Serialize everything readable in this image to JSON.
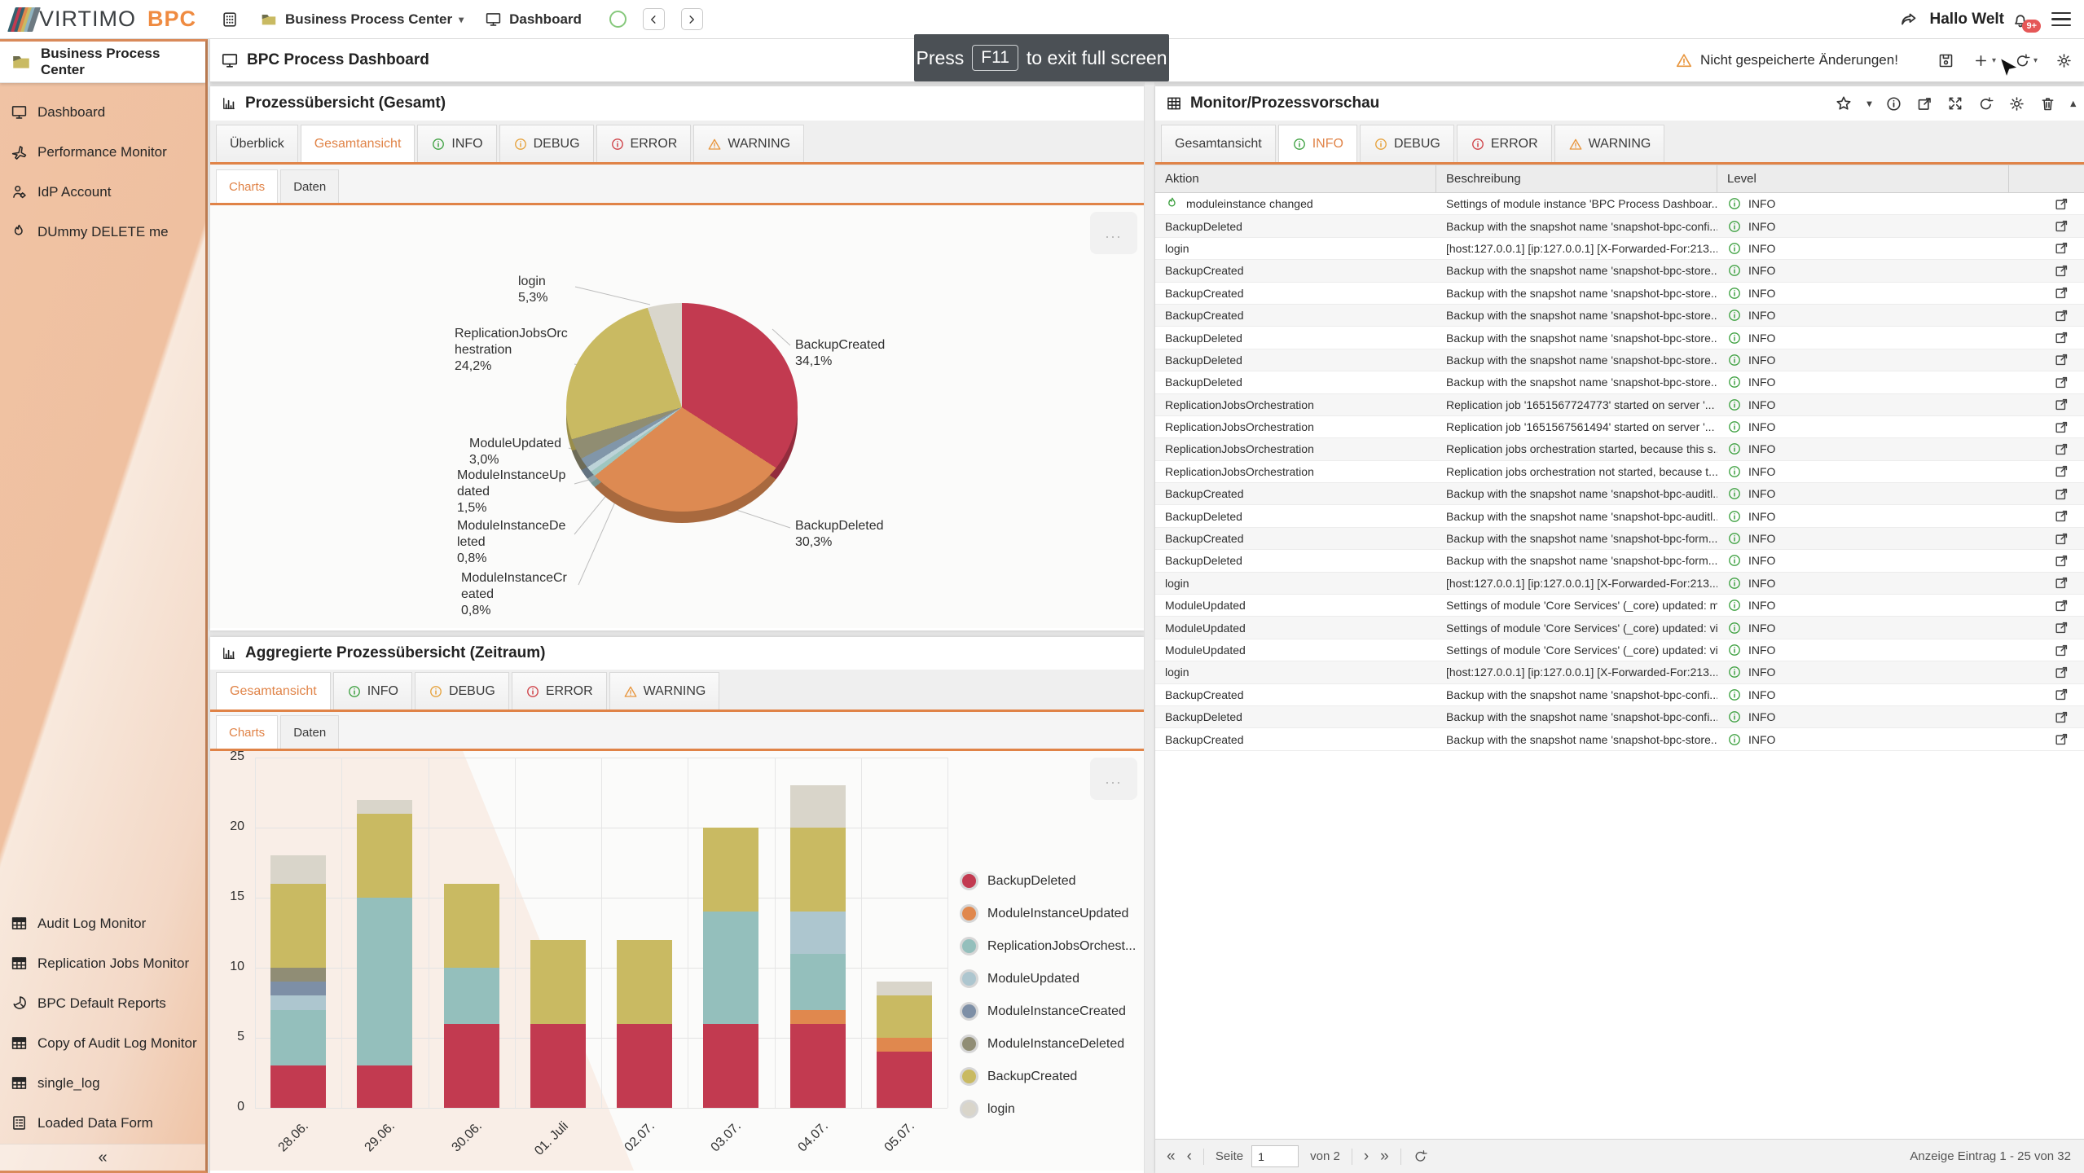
{
  "topbar": {
    "logo": "VIRTIMO",
    "logo_accent": "BPC",
    "logo_accent_color": "#ef8b41",
    "nav_workspace": "Business Process Center",
    "nav_view": "Dashboard",
    "user": "Hallo Welt",
    "notif_badge": "9+"
  },
  "toast": {
    "text_before": "Press",
    "key": "F11",
    "text_after": "to exit full screen"
  },
  "sidebar": {
    "title": "Business Process Center",
    "items_top": [
      {
        "icon": "monitor-icon",
        "label": "Dashboard"
      },
      {
        "icon": "jet-icon",
        "label": "Performance Monitor"
      },
      {
        "icon": "user-icon",
        "label": "IdP Account"
      },
      {
        "icon": "flame-icon",
        "label": "DUmmy DELETE me"
      }
    ],
    "items_bottom": [
      {
        "icon": "table-icon",
        "label": "Audit Log Monitor"
      },
      {
        "icon": "table-icon",
        "label": "Replication Jobs Monitor"
      },
      {
        "icon": "pie-icon",
        "label": "BPC Default Reports"
      },
      {
        "icon": "table-icon",
        "label": "Copy of Audit Log Monitor"
      },
      {
        "icon": "table-icon",
        "label": "single_log"
      },
      {
        "icon": "form-icon",
        "label": "Loaded Data Form"
      }
    ],
    "collapse_label": "«"
  },
  "header": {
    "title": "BPC Process Dashboard",
    "unsaved_warning": "Nicht gespeicherte Änderungen!"
  },
  "panel1": {
    "title": "Prozessübersicht (Gesamt)",
    "tabs": [
      {
        "label": "Überblick"
      },
      {
        "label": "Gesamtansicht",
        "active": true
      },
      {
        "label": "INFO",
        "icon": "info",
        "variant": "green"
      },
      {
        "label": "DEBUG",
        "icon": "info",
        "variant": "orange"
      },
      {
        "label": "ERROR",
        "icon": "info",
        "variant": "red"
      },
      {
        "label": "WARNING",
        "icon": "warning",
        "variant": "warn"
      }
    ],
    "subtabs": [
      {
        "label": "Charts",
        "active": true
      },
      {
        "label": "Daten"
      }
    ],
    "menu_dots": "..."
  },
  "panel2": {
    "title": "Aggregierte Prozessübersicht (Zeitraum)",
    "tabs": [
      {
        "label": "Gesamtansicht",
        "active": true
      },
      {
        "label": "INFO",
        "icon": "info",
        "variant": "green"
      },
      {
        "label": "DEBUG",
        "icon": "info",
        "variant": "orange"
      },
      {
        "label": "ERROR",
        "icon": "info",
        "variant": "red"
      },
      {
        "label": "WARNING",
        "icon": "warning",
        "variant": "warn"
      }
    ],
    "subtabs": [
      {
        "label": "Charts",
        "active": true
      },
      {
        "label": "Daten"
      }
    ],
    "menu_dots": "..."
  },
  "right_panel": {
    "title": "Monitor/Prozessvorschau",
    "tabs": [
      {
        "label": "Gesamtansicht"
      },
      {
        "label": "INFO",
        "icon": "info",
        "variant": "green",
        "active": true
      },
      {
        "label": "DEBUG",
        "icon": "info",
        "variant": "orange"
      },
      {
        "label": "ERROR",
        "icon": "info",
        "variant": "red"
      },
      {
        "label": "WARNING",
        "icon": "warning",
        "variant": "warn"
      }
    ],
    "columns": [
      "Aktion",
      "Beschreibung",
      "Level"
    ],
    "rows": [
      {
        "icon": "flame-icon",
        "action": "moduleinstance changed",
        "desc": "Settings of module instance 'BPC Process Dashboar...",
        "level": "INFO"
      },
      {
        "action": "BackupDeleted",
        "desc": "Backup with the snapshot name 'snapshot-bpc-confi...",
        "level": "INFO"
      },
      {
        "action": "login",
        "desc": "[host:127.0.0.1] [ip:127.0.0.1] [X-Forwarded-For:213...",
        "level": "INFO"
      },
      {
        "action": "BackupCreated",
        "desc": "Backup with the snapshot name 'snapshot-bpc-store...",
        "level": "INFO"
      },
      {
        "action": "BackupCreated",
        "desc": "Backup with the snapshot name 'snapshot-bpc-store...",
        "level": "INFO"
      },
      {
        "action": "BackupCreated",
        "desc": "Backup with the snapshot name 'snapshot-bpc-store...",
        "level": "INFO"
      },
      {
        "action": "BackupDeleted",
        "desc": "Backup with the snapshot name 'snapshot-bpc-store...",
        "level": "INFO"
      },
      {
        "action": "BackupDeleted",
        "desc": "Backup with the snapshot name 'snapshot-bpc-store...",
        "level": "INFO"
      },
      {
        "action": "BackupDeleted",
        "desc": "Backup with the snapshot name 'snapshot-bpc-store...",
        "level": "INFO"
      },
      {
        "action": "ReplicationJobsOrchestration",
        "desc": "Replication job '1651567724773' started on server '...",
        "level": "INFO"
      },
      {
        "action": "ReplicationJobsOrchestration",
        "desc": "Replication job '1651567561494' started on server '...",
        "level": "INFO"
      },
      {
        "action": "ReplicationJobsOrchestration",
        "desc": "Replication jobs orchestration started, because this s...",
        "level": "INFO"
      },
      {
        "action": "ReplicationJobsOrchestration",
        "desc": "Replication jobs orchestration not started, because t...",
        "level": "INFO"
      },
      {
        "action": "BackupCreated",
        "desc": "Backup with the snapshot name 'snapshot-bpc-auditl...",
        "level": "INFO"
      },
      {
        "action": "BackupDeleted",
        "desc": "Backup with the snapshot name 'snapshot-bpc-auditl...",
        "level": "INFO"
      },
      {
        "action": "BackupCreated",
        "desc": "Backup with the snapshot name 'snapshot-bpc-form...",
        "level": "INFO"
      },
      {
        "action": "BackupDeleted",
        "desc": "Backup with the snapshot name 'snapshot-bpc-form...",
        "level": "INFO"
      },
      {
        "action": "login",
        "desc": "[host:127.0.0.1] [ip:127.0.0.1] [X-Forwarded-For:213...",
        "level": "INFO"
      },
      {
        "action": "ModuleUpdated",
        "desc": "Settings of module 'Core Services' (_core) updated: m...",
        "level": "INFO"
      },
      {
        "action": "ModuleUpdated",
        "desc": "Settings of module 'Core Services' (_core) updated: vi...",
        "level": "INFO"
      },
      {
        "action": "ModuleUpdated",
        "desc": "Settings of module 'Core Services' (_core) updated: vi...",
        "level": "INFO"
      },
      {
        "action": "login",
        "desc": "[host:127.0.0.1] [ip:127.0.0.1] [X-Forwarded-For:213...",
        "level": "INFO"
      },
      {
        "action": "BackupCreated",
        "desc": "Backup with the snapshot name 'snapshot-bpc-confi...",
        "level": "INFO"
      },
      {
        "action": "BackupDeleted",
        "desc": "Backup with the snapshot name 'snapshot-bpc-confi...",
        "level": "INFO"
      },
      {
        "action": "BackupCreated",
        "desc": "Backup with the snapshot name 'snapshot-bpc-store...",
        "level": "INFO"
      }
    ],
    "pagination": {
      "first": "«",
      "prev": "‹",
      "page_label": "Seite",
      "page_value": "1",
      "of_label": "von 2",
      "next": "›",
      "last": "»",
      "summary": "Anzeige Eintrag 1 - 25 von 32"
    }
  },
  "chart_data": [
    {
      "type": "pie",
      "title": "Prozessübersicht (Gesamt)",
      "unit": "%",
      "slices": [
        {
          "name": "BackupCreated",
          "value": 34.1,
          "label_lines": [
            "BackupCreated",
            "34,1%"
          ],
          "color": "#c23a50"
        },
        {
          "name": "BackupDeleted",
          "value": 30.3,
          "label_lines": [
            "BackupDeleted",
            "30,3%"
          ],
          "color": "#dd8a52"
        },
        {
          "name": "ModuleInstanceCreated",
          "value": 0.8,
          "label_lines": [
            "ModuleInstanceCr",
            "eated",
            "0,8%"
          ],
          "color": "#9fc6c0"
        },
        {
          "name": "ModuleInstanceDeleted",
          "value": 0.8,
          "label_lines": [
            "ModuleInstanceDe",
            "leted",
            "0,8%"
          ],
          "color": "#bdd3d8"
        },
        {
          "name": "ModuleInstanceUpdated",
          "value": 1.5,
          "label_lines": [
            "ModuleInstanceUp",
            "dated",
            "1,5%"
          ],
          "color": "#8196a9"
        },
        {
          "name": "ModuleUpdated",
          "value": 3.0,
          "label_lines": [
            "ModuleUpdated",
            "3,0%"
          ],
          "color": "#908d72"
        },
        {
          "name": "ReplicationJobsOrchestration",
          "value": 24.2,
          "label_lines": [
            "ReplicationJobsOrc",
            "hestration",
            "24,2%"
          ],
          "color": "#c9ba62"
        },
        {
          "name": "login",
          "value": 5.3,
          "label_lines": [
            "login",
            "5,3%"
          ],
          "color": "#d9d6cc"
        }
      ]
    },
    {
      "type": "stacked-bar",
      "title": "Aggregierte Prozessübersicht (Zeitraum)",
      "categories": [
        "28.06.",
        "29.06.",
        "30.06.",
        "01. Juli",
        "02.07.",
        "03.07.",
        "04.07.",
        "05.07."
      ],
      "ylim": [
        0,
        25
      ],
      "yticks": [
        0,
        5,
        10,
        15,
        20,
        25
      ],
      "grid": true,
      "legend_position": "right",
      "series": [
        {
          "name": "BackupDeleted",
          "legend": "BackupDeleted",
          "color": "#c23a50",
          "values": [
            3,
            3,
            6,
            6,
            6,
            6,
            6,
            4
          ]
        },
        {
          "name": "ModuleInstanceUpdated",
          "legend": "ModuleInstanceUpdated",
          "color": "#e0884e",
          "values": [
            0,
            0,
            0,
            0,
            0,
            0,
            1,
            1
          ]
        },
        {
          "name": "ReplicationJobsOrchestration",
          "legend": "ReplicationJobsOrchest...",
          "color": "#94bfbc",
          "values": [
            4,
            12,
            4,
            0,
            0,
            8,
            4,
            0
          ]
        },
        {
          "name": "ModuleUpdated",
          "legend": "ModuleUpdated",
          "color": "#adc6cf",
          "values": [
            1,
            0,
            0,
            0,
            0,
            0,
            3,
            0
          ]
        },
        {
          "name": "ModuleInstanceCreated",
          "legend": "ModuleInstanceCreated",
          "color": "#7d8fa6",
          "values": [
            1,
            0,
            0,
            0,
            0,
            0,
            0,
            0
          ]
        },
        {
          "name": "ModuleInstanceDeleted",
          "legend": "ModuleInstanceDeleted",
          "color": "#908d75",
          "values": [
            1,
            0,
            0,
            0,
            0,
            0,
            0,
            0
          ]
        },
        {
          "name": "BackupCreated",
          "legend": "BackupCreated",
          "color": "#c9ba62",
          "values": [
            6,
            6,
            6,
            6,
            6,
            6,
            6,
            3
          ]
        },
        {
          "name": "login",
          "legend": "login",
          "color": "#d9d5ca",
          "values": [
            2,
            1,
            0,
            0,
            0,
            0,
            3,
            1
          ]
        }
      ]
    }
  ]
}
